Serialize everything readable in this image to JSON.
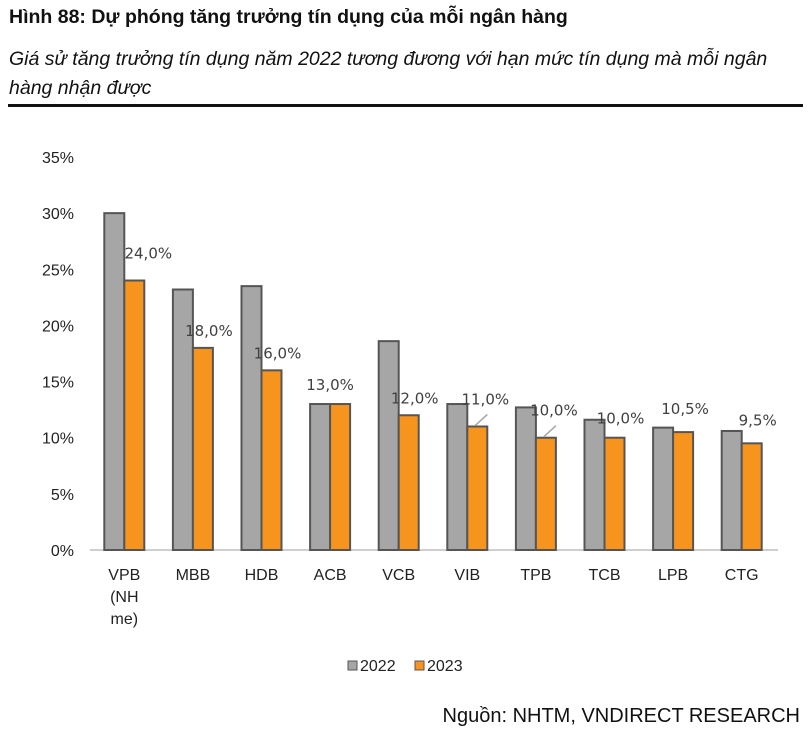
{
  "header": {
    "title": "Hình 88: Dự phóng tăng trưởng tín dụng của mỗi ngân hàng",
    "subtitle": "Giá sử tăng trưởng tín dụng năm 2022 tương đương với hạn mức tín dụng mà mỗi ngân hàng nhận được"
  },
  "source": "Nguồn: NHTM, VNDIRECT RESEARCH",
  "chart_data": {
    "type": "bar",
    "categories": [
      "VPB (NH me)",
      "MBB",
      "HDB",
      "ACB",
      "VCB",
      "VIB",
      "TPB",
      "TCB",
      "LPB",
      "CTG"
    ],
    "category_lines": [
      [
        "VPB",
        "(NH",
        "me)"
      ],
      [
        "MBB"
      ],
      [
        "HDB"
      ],
      [
        "ACB"
      ],
      [
        "VCB"
      ],
      [
        "VIB"
      ],
      [
        "TPB"
      ],
      [
        "TCB"
      ],
      [
        "LPB"
      ],
      [
        "CTG"
      ]
    ],
    "series": [
      {
        "name": "2022",
        "color": "#a6a6a6",
        "values": [
          30.0,
          23.2,
          23.5,
          13.0,
          18.6,
          13.0,
          12.7,
          11.6,
          10.9,
          10.6
        ]
      },
      {
        "name": "2023",
        "color": "#f7941d",
        "values": [
          24.0,
          18.0,
          16.0,
          13.0,
          12.0,
          11.0,
          10.0,
          10.0,
          10.5,
          9.5
        ],
        "data_labels": [
          "24,0%",
          "18,0%",
          "16,0%",
          "13,0%",
          "12,0%",
          "11,0%",
          "10,0%",
          "10,0%",
          "10,5%",
          "9,5%"
        ]
      }
    ],
    "yticks": [
      "0%",
      "5%",
      "10%",
      "15%",
      "20%",
      "25%",
      "30%",
      "35%"
    ],
    "ylim": [
      0,
      35
    ],
    "grid": false,
    "legend": "bottom"
  }
}
